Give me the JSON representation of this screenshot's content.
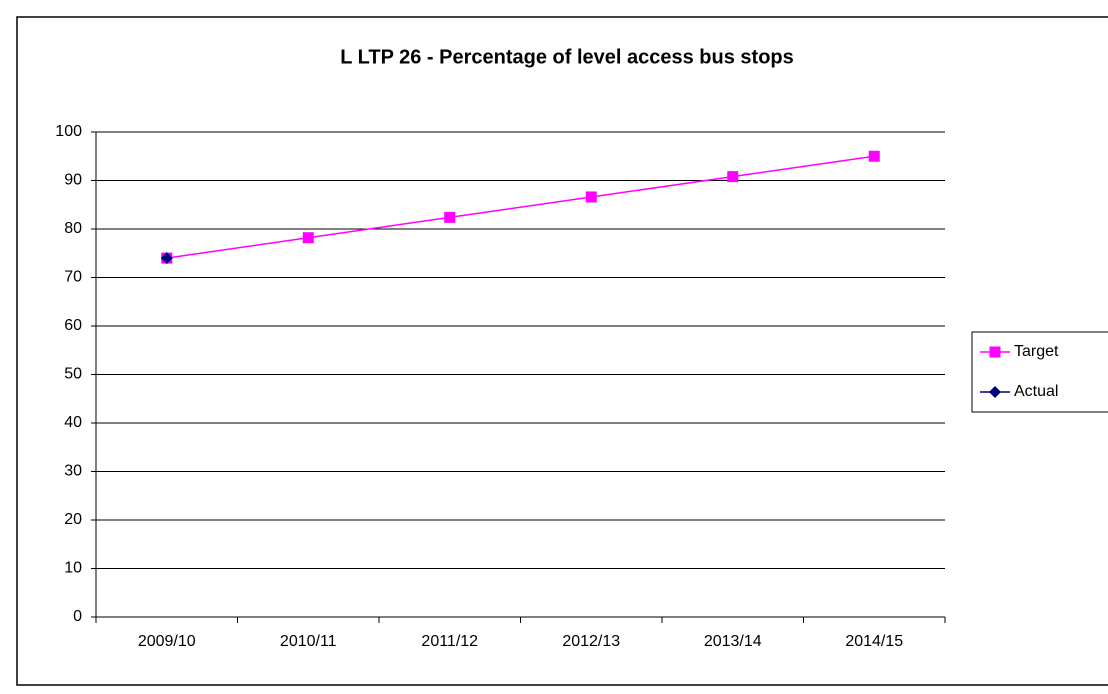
{
  "chart_data": {
    "type": "line",
    "title": "L LTP 26 - Percentage of level access bus stops",
    "categories": [
      "2009/10",
      "2010/11",
      "2011/12",
      "2012/13",
      "2013/14",
      "2014/15"
    ],
    "series": [
      {
        "name": "Target",
        "color": "#ff00ff",
        "marker": "square",
        "values": [
          74,
          78.2,
          82.4,
          86.6,
          90.8,
          95
        ]
      },
      {
        "name": "Actual",
        "color": "#000080",
        "marker": "diamond",
        "values": [
          74,
          null,
          null,
          null,
          null,
          null
        ]
      }
    ],
    "ylim": [
      0,
      100
    ],
    "yticks": [
      0,
      10,
      20,
      30,
      40,
      50,
      60,
      70,
      80,
      90,
      100
    ],
    "grid": true,
    "legend": "right"
  }
}
